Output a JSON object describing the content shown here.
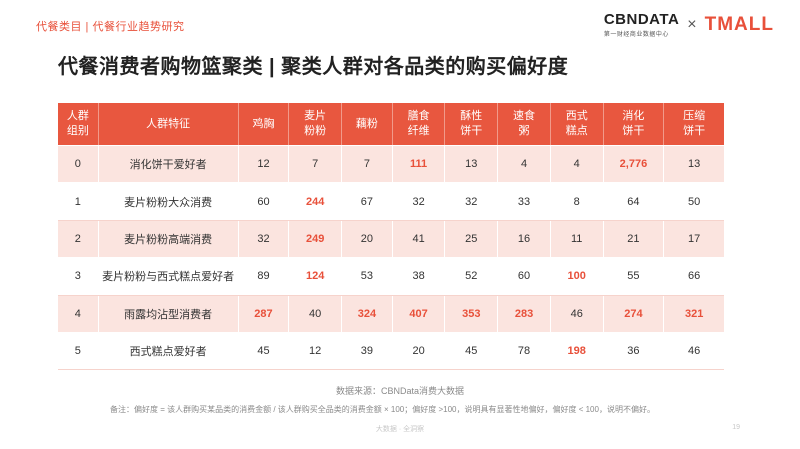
{
  "breadcrumb": "代餐类目 | 代餐行业趋势研究",
  "logos": {
    "cbn_name": "CBNDATA",
    "cbn_sub": "第一财经商业数据中心",
    "separator": "×",
    "tmall": "TMALL"
  },
  "title": "代餐消费者购物篮聚类 | 聚类人群对各品类的购买偏好度",
  "table": {
    "headers": [
      [
        "人群",
        "组别"
      ],
      [
        "人群特征"
      ],
      [
        "鸡胸"
      ],
      [
        "麦片",
        "粉粉"
      ],
      [
        "藕粉"
      ],
      [
        "膳食",
        "纤维"
      ],
      [
        "酥性",
        "饼干"
      ],
      [
        "速食",
        "粥"
      ],
      [
        "西式",
        "糕点"
      ],
      [
        "消化",
        "饼干"
      ],
      [
        "压缩",
        "饼干"
      ]
    ],
    "rows": [
      {
        "cells": [
          "0",
          "消化饼干爱好者",
          "12",
          "7",
          "7",
          "111",
          "13",
          "4",
          "4",
          "2,776",
          "13"
        ],
        "highlight": [
          5,
          9
        ]
      },
      {
        "cells": [
          "1",
          "麦片粉粉大众消费",
          "60",
          "244",
          "67",
          "32",
          "32",
          "33",
          "8",
          "64",
          "50"
        ],
        "highlight": [
          3
        ]
      },
      {
        "cells": [
          "2",
          "麦片粉粉高端消费",
          "32",
          "249",
          "20",
          "41",
          "25",
          "16",
          "11",
          "21",
          "17"
        ],
        "highlight": [
          3
        ]
      },
      {
        "cells": [
          "3",
          "麦片粉粉与西式糕点爱好者",
          "89",
          "124",
          "53",
          "38",
          "52",
          "60",
          "100",
          "55",
          "66"
        ],
        "highlight": [
          3,
          8
        ]
      },
      {
        "cells": [
          "4",
          "雨露均沾型消费者",
          "287",
          "40",
          "324",
          "407",
          "353",
          "283",
          "46",
          "274",
          "321"
        ],
        "highlight": [
          2,
          4,
          5,
          6,
          7,
          9,
          10
        ]
      },
      {
        "cells": [
          "5",
          "西式糕点爱好者",
          "45",
          "12",
          "39",
          "20",
          "45",
          "78",
          "198",
          "36",
          "46"
        ],
        "highlight": [
          8
        ]
      }
    ]
  },
  "source": "数据来源：CBNData消费大数据",
  "note": "备注：偏好度 = 该人群购买某品类的消费金额 / 该人群购买全品类的消费金额 × 100；偏好度 >100，说明具有显著性地偏好，偏好度 < 100，说明不偏好。",
  "footer": "大数据 · 全洞察",
  "page_number": "19",
  "colors": {
    "accent": "#e8573f",
    "highlight_text": "#e8503a",
    "row_tint": "#fbe4df"
  }
}
